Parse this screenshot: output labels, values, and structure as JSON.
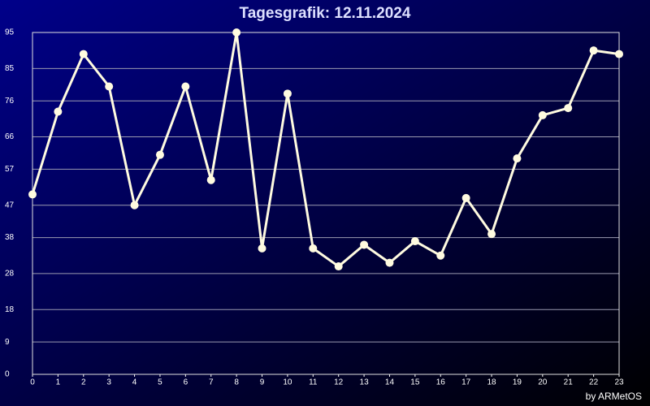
{
  "chart_data": {
    "type": "line",
    "title": "Tagesgrafik: 12.11.2024",
    "credit": "by ARMetOS",
    "x": [
      0,
      1,
      2,
      3,
      4,
      5,
      6,
      7,
      8,
      9,
      10,
      11,
      12,
      13,
      14,
      15,
      16,
      17,
      18,
      19,
      20,
      21,
      22,
      23
    ],
    "series": [
      {
        "color": "#fffbe0",
        "values": [
          50,
          73,
          89,
          80,
          47,
          61,
          80,
          54,
          95,
          35,
          78,
          35,
          30,
          36,
          31,
          37,
          33,
          49,
          39,
          60,
          72,
          74,
          90,
          89
        ]
      }
    ],
    "xlim": [
      0,
      23
    ],
    "xticks": [
      0,
      1,
      2,
      3,
      4,
      5,
      6,
      7,
      8,
      9,
      10,
      11,
      12,
      13,
      14,
      15,
      16,
      17,
      18,
      19,
      20,
      21,
      22,
      23
    ],
    "ylim": [
      0,
      95
    ],
    "yticks": [
      0,
      9,
      18,
      28,
      38,
      47,
      57,
      66,
      76,
      85,
      95
    ],
    "grid": true
  }
}
